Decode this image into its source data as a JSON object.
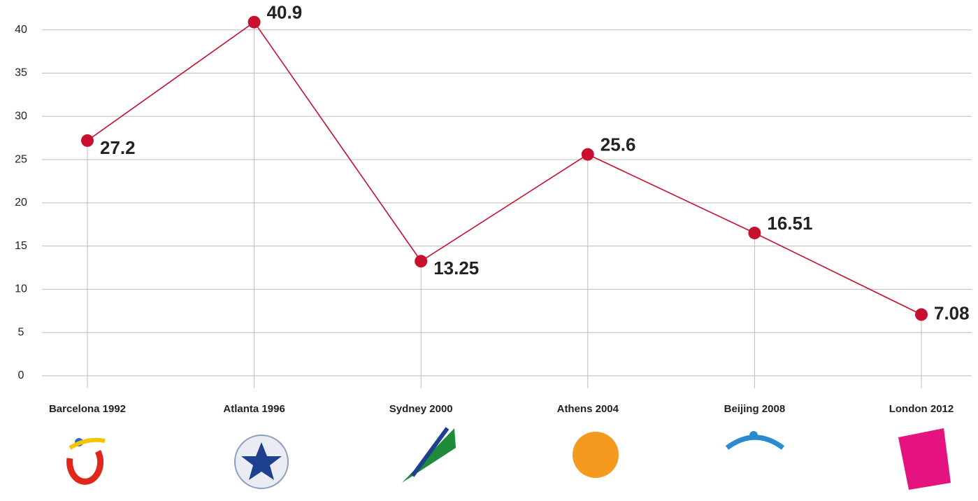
{
  "chart_data": {
    "type": "line",
    "categories": [
      "Barcelona 1992",
      "Atlanta 1996",
      "Sydney 2000",
      "Athens 2004",
      "Beijing 2008",
      "London 2012"
    ],
    "values": [
      27.2,
      40.9,
      13.25,
      25.6,
      16.51,
      7.08
    ],
    "color": "#c8102e",
    "ylim": [
      0,
      42
    ],
    "yticks": [
      0,
      5,
      10,
      15,
      20,
      25,
      30,
      35,
      40
    ],
    "grid": true
  }
}
